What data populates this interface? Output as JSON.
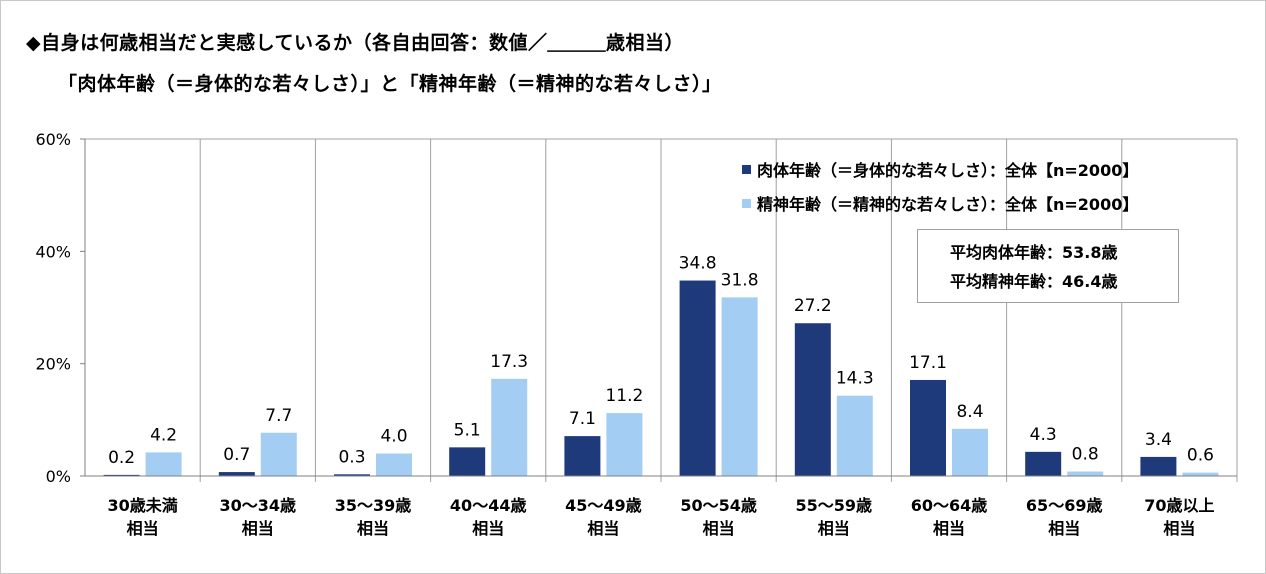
{
  "title": "◆自身は何歳相当だと実感しているか（各自由回答：数値／＿＿＿歳相当）",
  "subtitle": "「肉体年齢（＝身体的な若々しさ）」と「精神年齢（＝精神的な若々しさ）」",
  "annotation": {
    "line1": "平均肉体年齢：53.8歳",
    "line2": "平均精神年齢：46.4歳"
  },
  "colors": {
    "series1": "#1f3a7a",
    "series2": "#a4cdf4",
    "grid": "#a0a0a0"
  },
  "chart_data": {
    "type": "bar",
    "categories": [
      [
        "30歳未満",
        "相当"
      ],
      [
        "30～34歳",
        "相当"
      ],
      [
        "35～39歳",
        "相当"
      ],
      [
        "40～44歳",
        "相当"
      ],
      [
        "45～49歳",
        "相当"
      ],
      [
        "50～54歳",
        "相当"
      ],
      [
        "55～59歳",
        "相当"
      ],
      [
        "60～64歳",
        "相当"
      ],
      [
        "65～69歳",
        "相当"
      ],
      [
        "70歳以上",
        "相当"
      ]
    ],
    "series": [
      {
        "name": "肉体年齢（＝身体的な若々しさ）：全体【n=2000】",
        "values": [
          0.2,
          0.7,
          0.3,
          5.1,
          7.1,
          34.8,
          27.2,
          17.1,
          4.3,
          3.4
        ]
      },
      {
        "name": "精神年齢（＝精神的な若々しさ）：全体【n=2000】",
        "values": [
          4.2,
          7.7,
          4.0,
          17.3,
          11.2,
          31.8,
          14.3,
          8.4,
          0.8,
          0.6
        ]
      }
    ],
    "ylim": [
      0,
      60
    ],
    "yticks": [
      "0%",
      "20%",
      "40%",
      "60%"
    ],
    "ytick_values": [
      0,
      20,
      40,
      60
    ],
    "grid": "vertical",
    "legend_position": "top-right"
  }
}
